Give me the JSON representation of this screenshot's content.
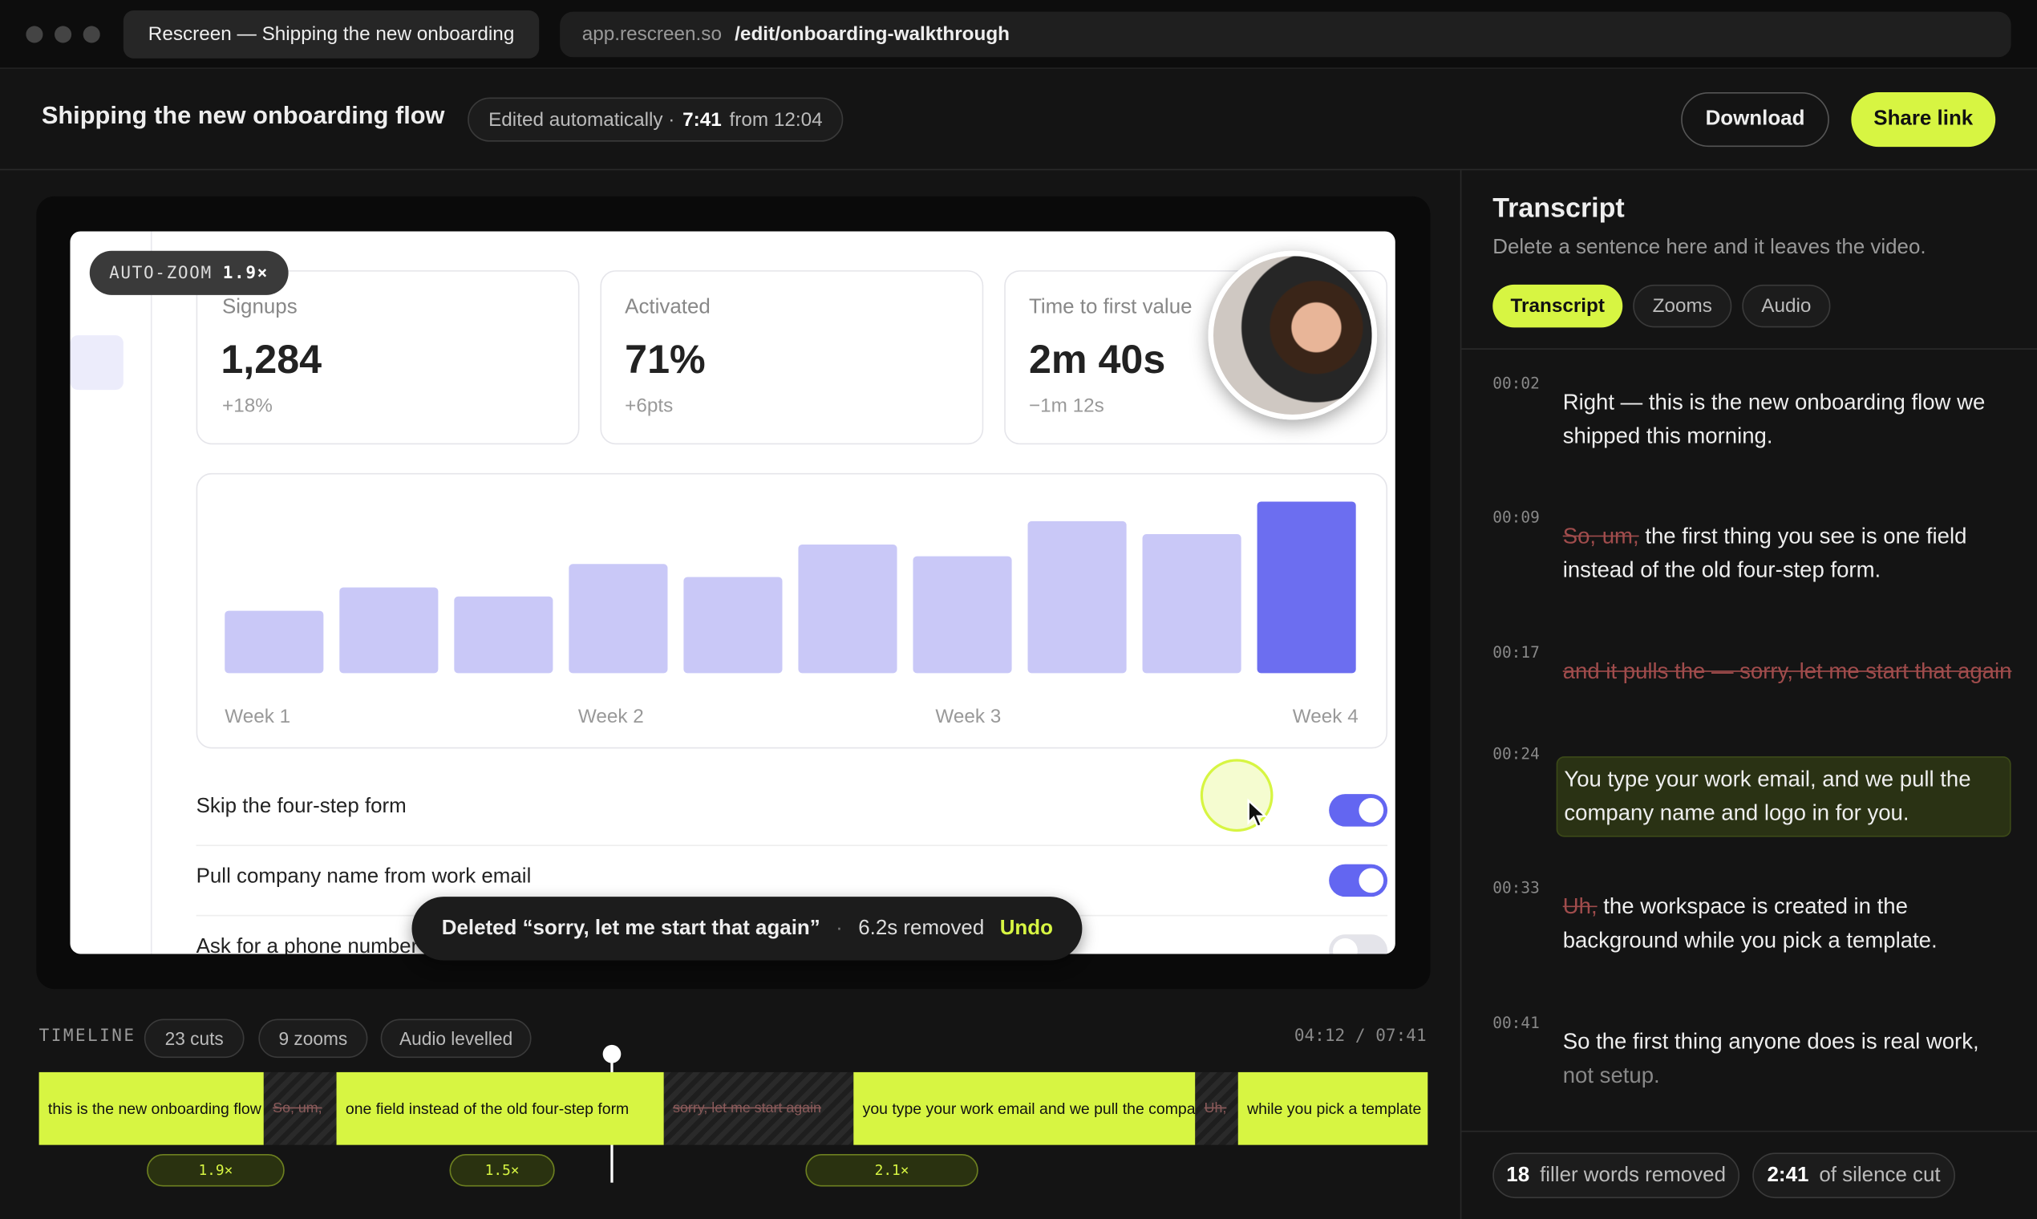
{
  "browser": {
    "tab_title": "Rescreen — Shipping the new onboarding",
    "url_host": "app.rescreen.so",
    "url_path": "/edit/onboarding-walkthrough"
  },
  "header": {
    "title": "Shipping the new onboarding flow",
    "status_prefix": "Edited automatically ·",
    "duration": "7:41",
    "status_suffix": "from 12:04",
    "download": "Download",
    "share": "Share link"
  },
  "preview": {
    "badge_label": "AUTO-ZOOM",
    "badge_value": "1.9×",
    "stats": [
      {
        "label": "Signups",
        "value": "1,284",
        "delta": "+18%"
      },
      {
        "label": "Activated",
        "value": "71%",
        "delta": "+6pts"
      },
      {
        "label": "Time to first value",
        "value": "2m 40s",
        "delta": "−1m 12s"
      }
    ],
    "chart": {
      "type": "bar",
      "x_labels": [
        "Week 1",
        "Week 2",
        "Week 3",
        "Week 4"
      ],
      "values": [
        48,
        66,
        59,
        84,
        74,
        99,
        90,
        117,
        107,
        132
      ]
    },
    "toggles": [
      {
        "label": "Skip the four-step form",
        "on": true
      },
      {
        "label": "Pull company name from work email",
        "on": true
      },
      {
        "label": "Ask for a phone number",
        "on": false
      }
    ],
    "toast": {
      "text": "Deleted “sorry, let me start that again”",
      "removed": "6.2s removed",
      "undo": "Undo"
    }
  },
  "timeline": {
    "label": "TIMELINE",
    "chips": [
      "23 cuts",
      "9 zooms",
      "Audio levelled"
    ],
    "time": "04:12 / 07:41",
    "segments": [
      {
        "text": "this is the new onboarding flow",
        "cut": false
      },
      {
        "text": "So, um,",
        "cut": true
      },
      {
        "text": "one field instead of the old four-step form",
        "cut": false
      },
      {
        "text": "sorry, let me start again",
        "cut": true
      },
      {
        "text": "you type your work email and we pull the company",
        "cut": false
      },
      {
        "text": "Uh,",
        "cut": true
      },
      {
        "text": "while you pick a template",
        "cut": false
      }
    ],
    "zooms": [
      "1.9×",
      "1.5×",
      "2.1×"
    ]
  },
  "transcript": {
    "title": "Transcript",
    "subtitle": "Delete a sentence here and it leaves the video.",
    "tabs": [
      "Transcript",
      "Zooms",
      "Audio"
    ],
    "entries": [
      {
        "time": "00:02",
        "text": "Right — this is the new onboarding flow we shipped this morning."
      },
      {
        "time": "00:09",
        "struck": "So, um,",
        "text": "the first thing you see is one field instead of the old four-step form."
      },
      {
        "time": "00:17",
        "struck": "and it pulls the — sorry, let me start that again"
      },
      {
        "time": "00:24",
        "text": "You type your work email, and we pull the company name and logo in for you.",
        "active": true
      },
      {
        "time": "00:33",
        "struck": "Uh,",
        "text": "the workspace is created in the background while you pick a template."
      },
      {
        "time": "00:41",
        "text": "So the first thing anyone does is real work,",
        "faded": "not setup."
      }
    ],
    "footer": [
      {
        "value": "18",
        "label": "filler words removed"
      },
      {
        "value": "2:41",
        "label": "of silence cut"
      }
    ]
  }
}
